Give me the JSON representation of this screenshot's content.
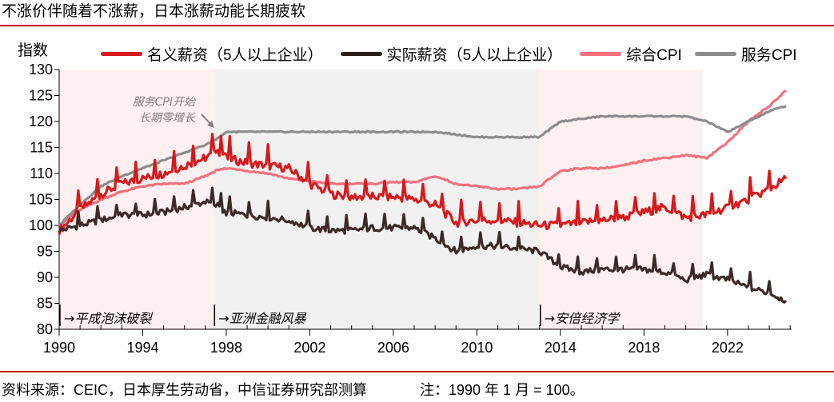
{
  "title": "不涨价伴随着不涨薪，日本涨薪动能长期疲软",
  "footer": {
    "source": "资料来源：CEIC，日本厚生劳动省，中信证券研究部测算",
    "note": "注：1990 年 1 月 = 100。"
  },
  "colors": {
    "accent_rule": "#c00000",
    "nominal_wage": "#d7191c",
    "real_wage": "#3b2a28",
    "cpi": "#f4707f",
    "service_cpi": "#8c8c8c",
    "shade_pink": "#fdf0f0",
    "shade_gray": "#f1f1f1"
  },
  "chart_data": {
    "type": "line",
    "title": "不涨价伴随着不涨薪，日本涨薪动能长期疲软",
    "xlabel": "",
    "ylabel": "指数",
    "xlim": [
      1990,
      2025
    ],
    "ylim": [
      80,
      130
    ],
    "x_ticks": [
      "1990",
      "1994",
      "1998",
      "2002",
      "2006",
      "2010",
      "2014",
      "2018",
      "2022"
    ],
    "y_ticks": [
      "80",
      "85",
      "90",
      "95",
      "100",
      "105",
      "110",
      "115",
      "120",
      "125",
      "130"
    ],
    "grid": false,
    "legend_position": "top",
    "legend": [
      "名义薪资（5人以上企业）",
      "实际薪资（5人以上企业）",
      "综合CPI",
      "服务CPI"
    ],
    "x": [
      1990,
      1991,
      1992,
      1993,
      1994,
      1995,
      1996,
      1997,
      1997.5,
      1998,
      1999,
      2000,
      2001,
      2002,
      2003,
      2004,
      2005,
      2006,
      2007,
      2008,
      2009,
      2010,
      2011,
      2012,
      2013,
      2014,
      2015,
      2016,
      2017,
      2018,
      2019,
      2020,
      2021,
      2022,
      2023,
      2024,
      2024.8
    ],
    "series": [
      {
        "name": "名义薪资（5人以上企业）",
        "values": [
          99,
          103,
          106,
          108,
          109,
          110,
          111.5,
          113,
          114,
          113,
          112,
          111.5,
          111,
          108,
          106,
          105.5,
          105.5,
          105.5,
          105,
          104,
          100.5,
          101,
          101,
          100.5,
          100,
          100,
          100.5,
          101,
          101.5,
          102.5,
          103.5,
          101.5,
          102,
          103.5,
          105,
          107,
          109
        ]
      },
      {
        "name": "实际薪资（5人以上企业）",
        "values": [
          99,
          100,
          101,
          102,
          102,
          102.5,
          103.5,
          104.5,
          104,
          102.5,
          102,
          101.5,
          101,
          99.5,
          99,
          99,
          99.5,
          99.5,
          99.5,
          97.5,
          95,
          96,
          96,
          95.5,
          95,
          92,
          91,
          91.5,
          91.5,
          91.5,
          91,
          89.5,
          90.5,
          89.5,
          88,
          87,
          85.5
        ]
      },
      {
        "name": "综合CPI",
        "values": [
          100,
          103,
          105,
          106.5,
          107.5,
          108,
          108,
          109.5,
          110.5,
          111,
          110.5,
          110,
          109,
          108.5,
          108,
          108,
          108,
          108.3,
          108.3,
          109.5,
          108,
          107.5,
          107,
          107,
          107.5,
          110.5,
          111,
          111,
          111.5,
          112.5,
          113,
          113.5,
          113,
          116,
          120,
          123,
          126
        ]
      },
      {
        "name": "服务CPI",
        "values": [
          100,
          104,
          107.5,
          109.5,
          111,
          112.5,
          114,
          115.5,
          116.5,
          118,
          118,
          118,
          118,
          118,
          118,
          118,
          118,
          118,
          118,
          118,
          117.5,
          117,
          117,
          117,
          117,
          120,
          120.5,
          121,
          121,
          121,
          121,
          121,
          120,
          118,
          120,
          122,
          123
        ]
      }
    ],
    "shaded_periods": [
      {
        "start": 1990,
        "end": 1997.4,
        "label": "→平成泡沫破裂",
        "color": "pink"
      },
      {
        "start": 1997.4,
        "end": 2013.0,
        "label": "→亚洲金融风暴",
        "color": "gray"
      },
      {
        "start": 2013.0,
        "end": 2020.8,
        "label": "→安倍经济学",
        "color": "pink"
      }
    ],
    "annotations": [
      {
        "text": "服务CPI开始长期零增长",
        "lines": [
          "服务CPI开始",
          "长期零增长"
        ],
        "x": 1997.8,
        "y": 118
      }
    ]
  }
}
